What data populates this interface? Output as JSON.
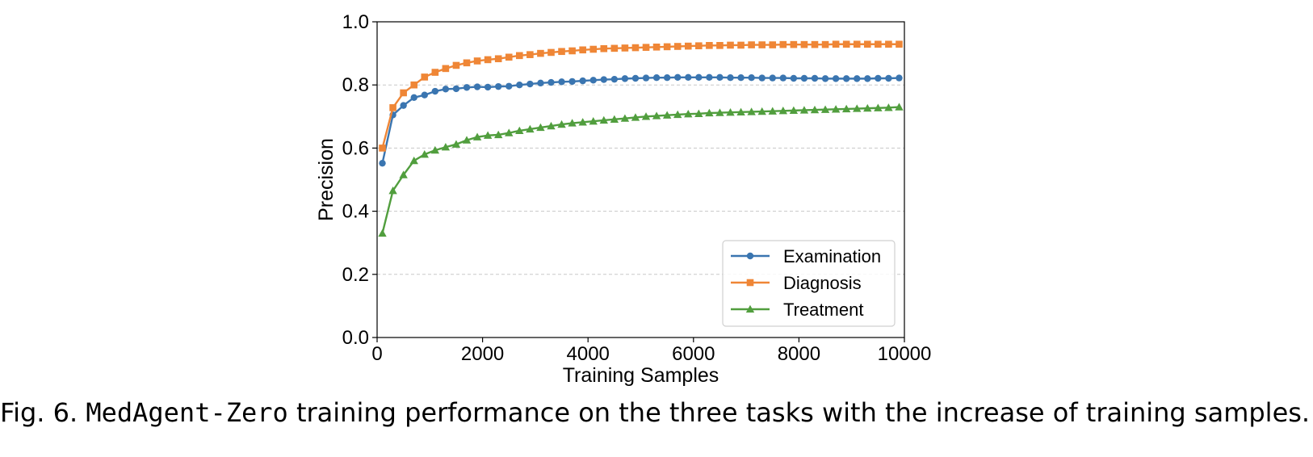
{
  "chart_data": {
    "type": "line",
    "title": "",
    "xlabel": "Training Samples",
    "ylabel": "Precision",
    "xlim": [
      0,
      10000
    ],
    "ylim": [
      0.0,
      1.0
    ],
    "xticks": [
      "0",
      "2000",
      "4000",
      "6000",
      "8000",
      "10000"
    ],
    "yticks": [
      "0.0",
      "0.2",
      "0.4",
      "0.6",
      "0.8",
      "1.0"
    ],
    "grid": "horizontal-dashed",
    "legend_position": "lower-right",
    "x": [
      100,
      300,
      500,
      700,
      900,
      1100,
      1300,
      1500,
      1700,
      1900,
      2100,
      2300,
      2500,
      2700,
      2900,
      3100,
      3300,
      3500,
      3700,
      3900,
      4100,
      4300,
      4500,
      4700,
      4900,
      5100,
      5300,
      5500,
      5700,
      5900,
      6100,
      6300,
      6500,
      6700,
      6900,
      7100,
      7300,
      7500,
      7700,
      7900,
      8100,
      8300,
      8500,
      8700,
      8900,
      9100,
      9300,
      9500,
      9700,
      9900
    ],
    "series": [
      {
        "name": "Examination",
        "color": "#3a75b0",
        "marker": "circle",
        "values": [
          0.552,
          0.705,
          0.735,
          0.76,
          0.768,
          0.78,
          0.787,
          0.788,
          0.792,
          0.794,
          0.793,
          0.795,
          0.796,
          0.8,
          0.803,
          0.806,
          0.808,
          0.81,
          0.811,
          0.813,
          0.815,
          0.817,
          0.818,
          0.82,
          0.821,
          0.822,
          0.823,
          0.823,
          0.824,
          0.824,
          0.824,
          0.824,
          0.824,
          0.823,
          0.823,
          0.823,
          0.822,
          0.822,
          0.822,
          0.821,
          0.821,
          0.821,
          0.82,
          0.82,
          0.82,
          0.82,
          0.82,
          0.821,
          0.821,
          0.822
        ]
      },
      {
        "name": "Diagnosis",
        "color": "#ef8636",
        "marker": "square",
        "values": [
          0.6,
          0.728,
          0.775,
          0.8,
          0.825,
          0.84,
          0.852,
          0.862,
          0.87,
          0.876,
          0.88,
          0.883,
          0.888,
          0.893,
          0.896,
          0.9,
          0.903,
          0.906,
          0.908,
          0.911,
          0.913,
          0.915,
          0.916,
          0.917,
          0.918,
          0.919,
          0.92,
          0.921,
          0.922,
          0.923,
          0.924,
          0.925,
          0.925,
          0.926,
          0.926,
          0.927,
          0.927,
          0.927,
          0.928,
          0.928,
          0.928,
          0.928,
          0.928,
          0.929,
          0.929,
          0.929,
          0.929,
          0.929,
          0.929,
          0.929
        ]
      },
      {
        "name": "Treatment",
        "color": "#519e3e",
        "marker": "triangle",
        "values": [
          0.33,
          0.465,
          0.515,
          0.56,
          0.58,
          0.593,
          0.603,
          0.612,
          0.625,
          0.635,
          0.64,
          0.642,
          0.648,
          0.655,
          0.66,
          0.665,
          0.67,
          0.675,
          0.679,
          0.682,
          0.685,
          0.688,
          0.691,
          0.694,
          0.697,
          0.7,
          0.702,
          0.704,
          0.706,
          0.708,
          0.709,
          0.711,
          0.712,
          0.713,
          0.714,
          0.715,
          0.716,
          0.717,
          0.718,
          0.719,
          0.72,
          0.721,
          0.722,
          0.723,
          0.724,
          0.725,
          0.726,
          0.727,
          0.728,
          0.73
        ]
      }
    ]
  },
  "caption": {
    "prefix": "Fig. 6.",
    "name": "MedAgent-Zero",
    "rest": "training performance on the three tasks with the increase of training samples."
  }
}
